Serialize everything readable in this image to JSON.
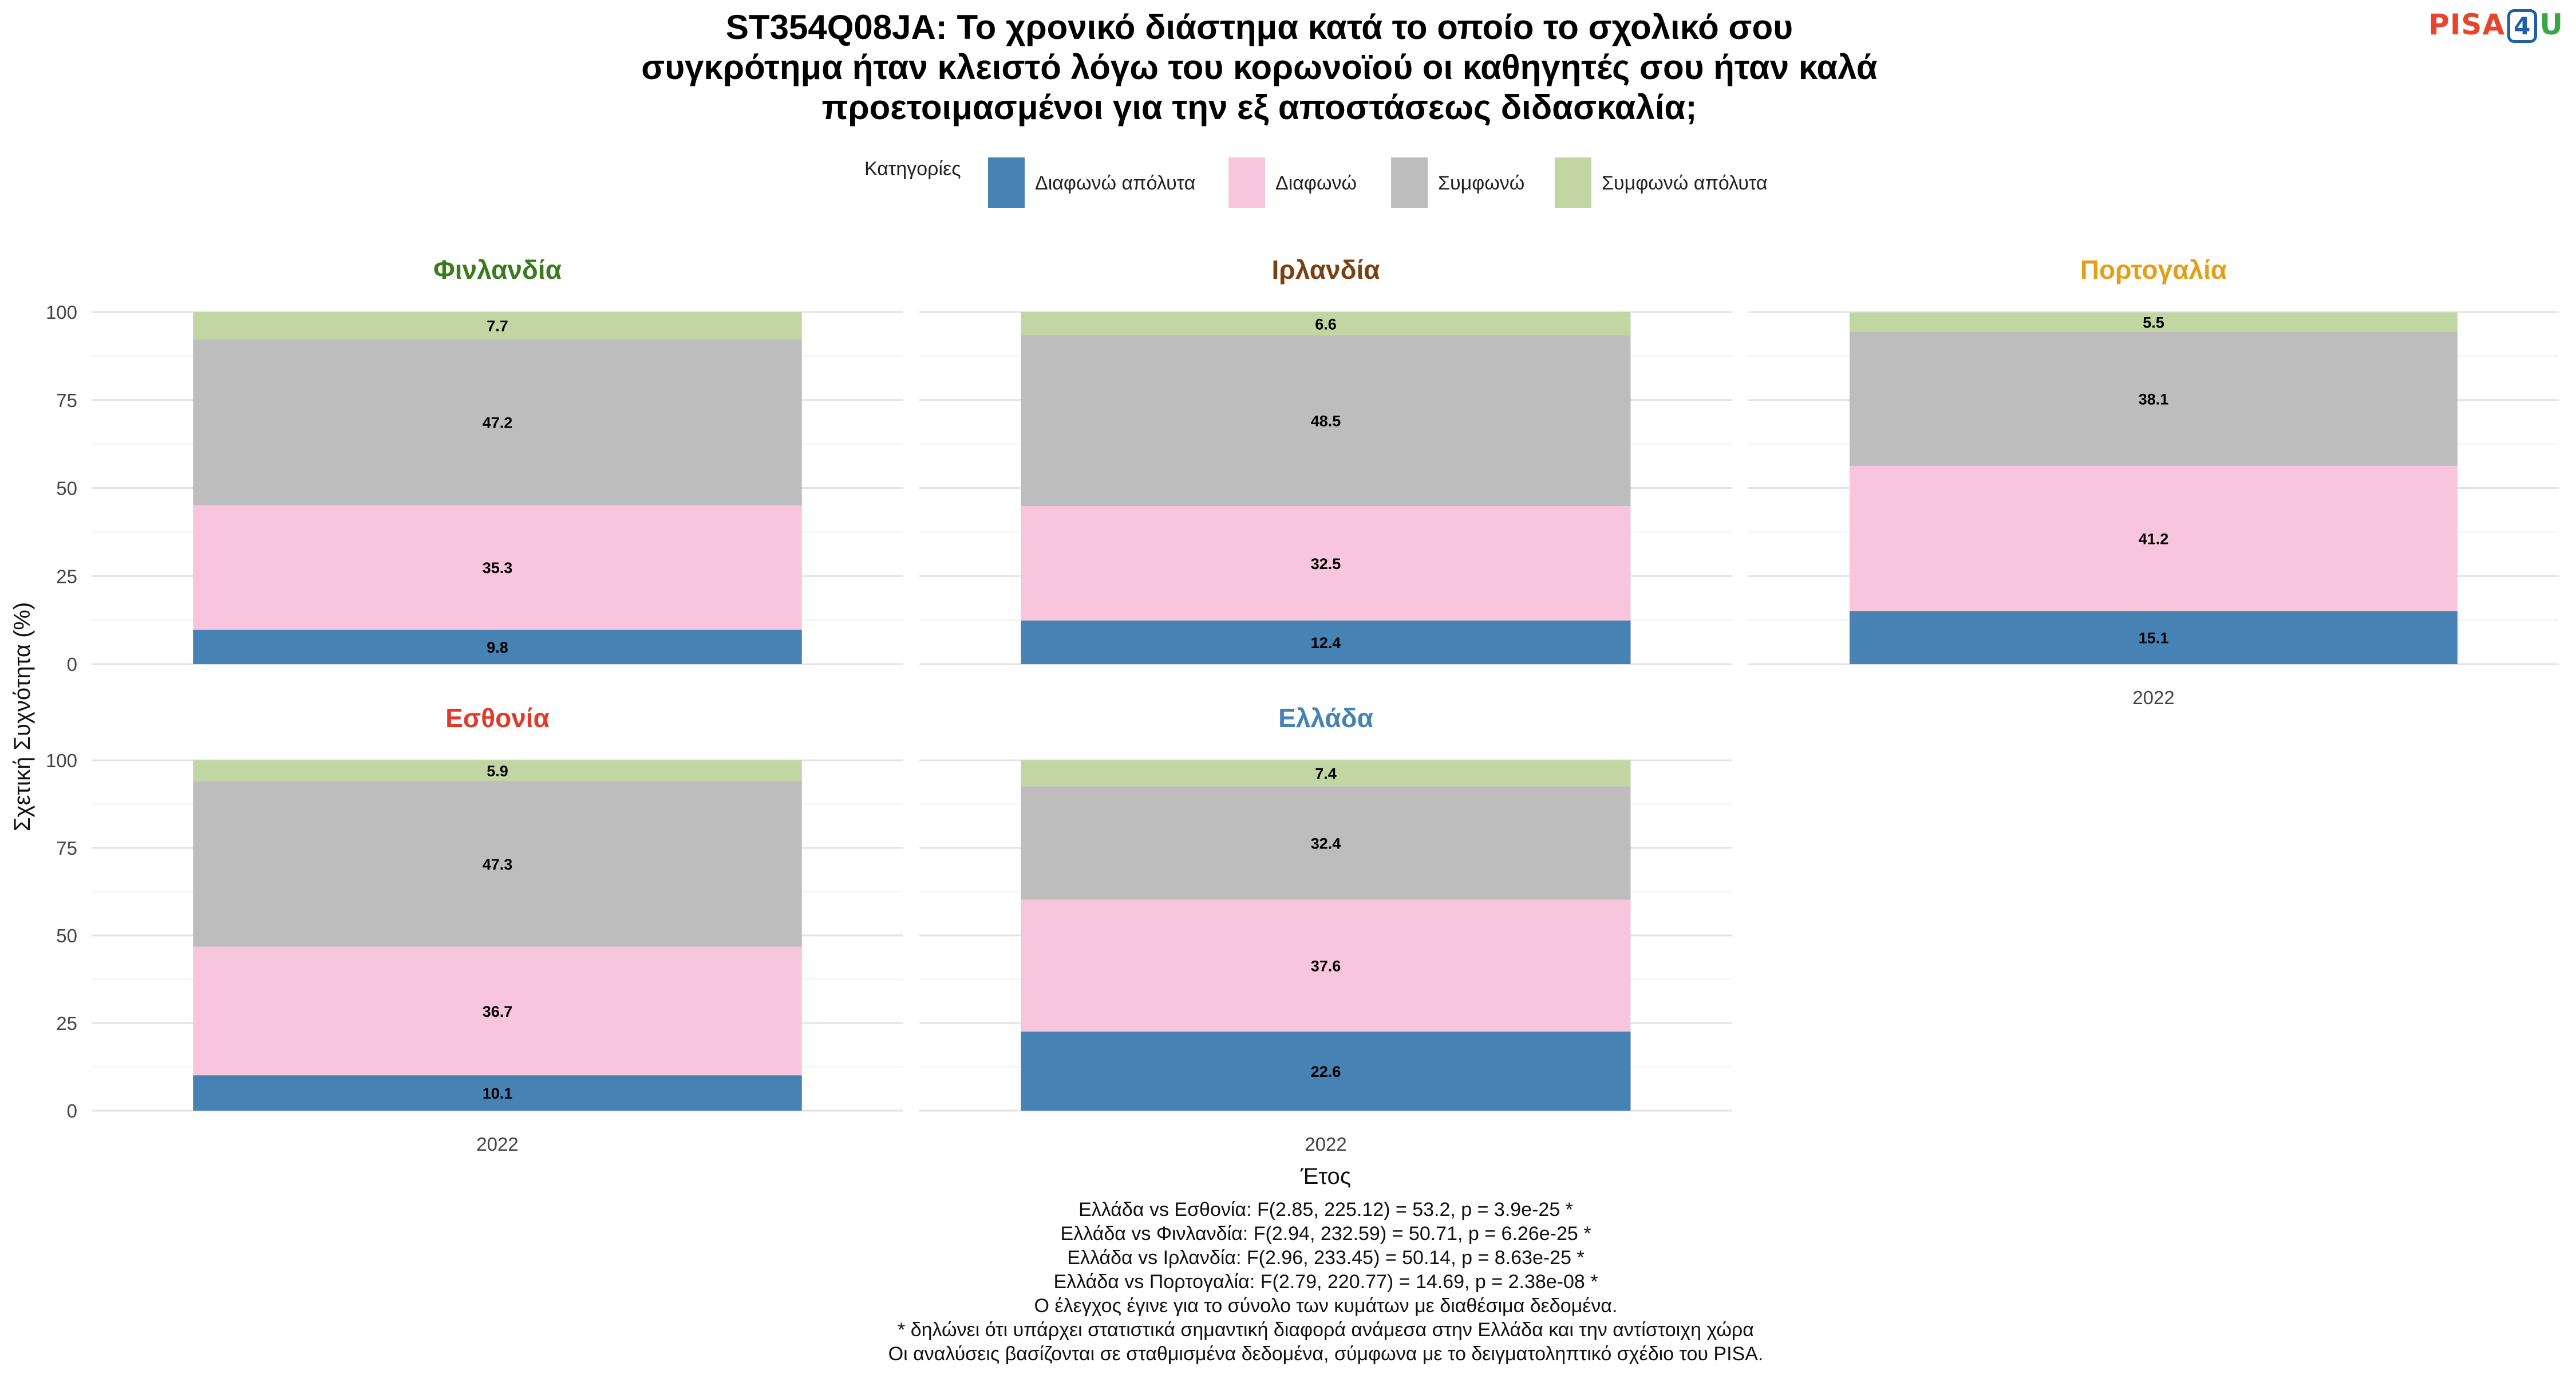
{
  "title_lines": [
    "ST354Q08JA: Το χρονικό διάστημα κατά το οποίο το σχολικό σου",
    "συγκρότημα ήταν κλειστό λόγω του κορωνοϊού οι καθηγητές σου ήταν καλά",
    "προετοιμασμένοι για την εξ αποστάσεως διδασκαλία;"
  ],
  "logo": {
    "pisa": "PISA",
    "four": "4",
    "u": "U"
  },
  "legend": {
    "title": "Κατηγορίες",
    "entries": [
      {
        "label": "Διαφωνώ απόλυτα",
        "color": "#4682b4"
      },
      {
        "label": "Διαφωνώ",
        "color": "#f7c6dc"
      },
      {
        "label": "Συμφωνώ",
        "color": "#bdbdbd"
      },
      {
        "label": "Συμφωνώ απόλυτα",
        "color": "#c2d6a4"
      }
    ]
  },
  "chart_data": {
    "type": "bar",
    "stacked": true,
    "ylabel": "Σχετική Συχνότητα (%)",
    "xlabel": "Έτος",
    "ylim": [
      0,
      100
    ],
    "yticks": [
      0,
      25,
      50,
      75,
      100
    ],
    "grid": true,
    "legend_position": "top",
    "series_names": [
      "Διαφωνώ απόλυτα",
      "Διαφωνώ",
      "Συμφωνώ",
      "Συμφωνώ απόλυτα"
    ],
    "panels": [
      {
        "country": "Φινλανδία",
        "color": "#3c7a1e",
        "year": "2022",
        "values": [
          9.8,
          35.3,
          47.2,
          7.7
        ]
      },
      {
        "country": "Ιρλανδία",
        "color": "#7a4012",
        "year": "2022",
        "values": [
          12.4,
          32.5,
          48.5,
          6.6
        ]
      },
      {
        "country": "Πορτογαλία",
        "color": "#e1a017",
        "year": "2022",
        "values": [
          15.1,
          41.2,
          38.1,
          5.5
        ]
      },
      {
        "country": "Εσθονία",
        "color": "#e3392a",
        "year": "2022",
        "values": [
          10.1,
          36.7,
          47.3,
          5.9
        ]
      },
      {
        "country": "Ελλάδα",
        "color": "#4682b4",
        "year": "2022",
        "values": [
          22.6,
          37.6,
          32.4,
          7.4
        ]
      }
    ]
  },
  "footnotes": [
    "Ελλάδα vs Εσθονία: F(2.85, 225.12) = 53.2, p = 3.9e-25 *",
    "Ελλάδα vs Φινλανδία: F(2.94, 232.59) = 50.71, p = 6.26e-25 *",
    "Ελλάδα vs Ιρλανδία: F(2.96, 233.45) = 50.14, p = 8.63e-25 *",
    "Ελλάδα vs Πορτογαλία: F(2.79, 220.77) = 14.69, p = 2.38e-08 *",
    "Ο έλεγχος έγινε για το σύνολο των κυμάτων με διαθέσιμα δεδομένα.",
    "* δηλώνει ότι υπάρχει στατιστικά σημαντική διαφορά ανάμεσα στην Ελλάδα και την αντίστοιχη χώρα",
    "Οι αναλύσεις βασίζονται σε σταθμισμένα δεδομένα, σύμφωνα με το δειγματοληπτικό σχέδιο του PISA."
  ]
}
